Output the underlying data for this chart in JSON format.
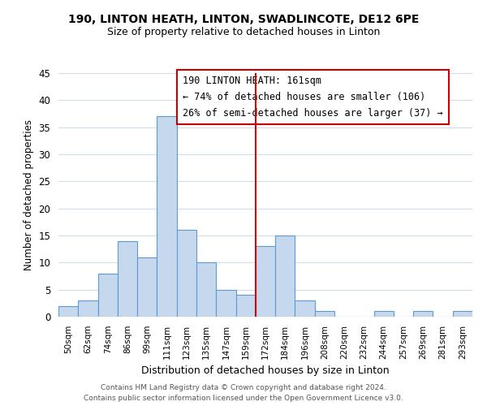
{
  "title_line1": "190, LINTON HEATH, LINTON, SWADLINCOTE, DE12 6PE",
  "title_line2": "Size of property relative to detached houses in Linton",
  "xlabel": "Distribution of detached houses by size in Linton",
  "ylabel": "Number of detached properties",
  "bin_labels": [
    "50sqm",
    "62sqm",
    "74sqm",
    "86sqm",
    "99sqm",
    "111sqm",
    "123sqm",
    "135sqm",
    "147sqm",
    "159sqm",
    "172sqm",
    "184sqm",
    "196sqm",
    "208sqm",
    "220sqm",
    "232sqm",
    "244sqm",
    "257sqm",
    "269sqm",
    "281sqm",
    "293sqm"
  ],
  "bin_counts": [
    2,
    3,
    8,
    14,
    11,
    37,
    16,
    10,
    5,
    4,
    13,
    15,
    3,
    1,
    0,
    0,
    1,
    0,
    1,
    0,
    1
  ],
  "bar_color": "#c5d8ed",
  "bar_edge_color": "#5b9bd5",
  "vline_x_index": 9.5,
  "vline_color": "#cc0000",
  "ylim": [
    0,
    45
  ],
  "yticks": [
    0,
    5,
    10,
    15,
    20,
    25,
    30,
    35,
    40,
    45
  ],
  "annotation_title": "190 LINTON HEATH: 161sqm",
  "annotation_line1": "← 74% of detached houses are smaller (106)",
  "annotation_line2": "26% of semi-detached houses are larger (37) →",
  "annotation_box_color": "#ffffff",
  "annotation_box_edge_color": "#cc0000",
  "footer_line1": "Contains HM Land Registry data © Crown copyright and database right 2024.",
  "footer_line2": "Contains public sector information licensed under the Open Government Licence v3.0.",
  "bg_color": "#ffffff",
  "grid_color": "#d0dce8"
}
